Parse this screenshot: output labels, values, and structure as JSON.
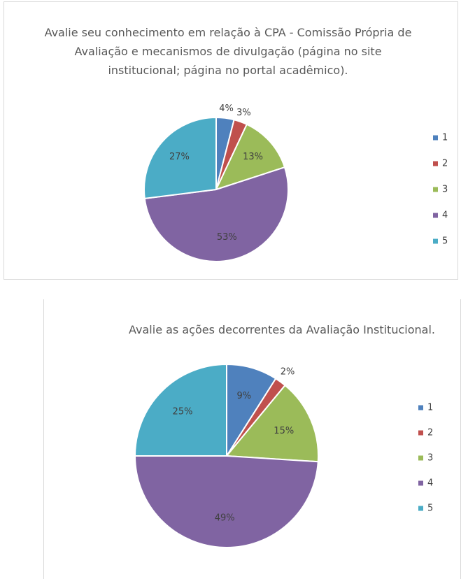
{
  "chart_data": [
    {
      "type": "pie",
      "title": "Avalie seu conhecimento em relação à CPA - Comissão Própria de Avaliação e mecanismos de divulgação (página no site institucional; página no portal acadêmico).",
      "categories": [
        "1",
        "2",
        "3",
        "4",
        "5"
      ],
      "values": [
        4,
        3,
        13,
        53,
        27
      ],
      "value_labels": [
        "4%",
        "3%",
        "13%",
        "53%",
        "27%"
      ],
      "colors": [
        "#4f81bd",
        "#c0504d",
        "#9bbb59",
        "#8064a2",
        "#4bacc6"
      ],
      "legend": "right"
    },
    {
      "type": "pie",
      "title": "Avalie as ações decorrentes da Avaliação Institucional.",
      "categories": [
        "1",
        "2",
        "3",
        "4",
        "5"
      ],
      "values": [
        9,
        2,
        15,
        49,
        25
      ],
      "value_labels": [
        "9%",
        "2%",
        "15%",
        "49%",
        "25%"
      ],
      "colors": [
        "#4f81bd",
        "#c0504d",
        "#9bbb59",
        "#8064a2",
        "#4bacc6"
      ],
      "legend": "right"
    }
  ]
}
